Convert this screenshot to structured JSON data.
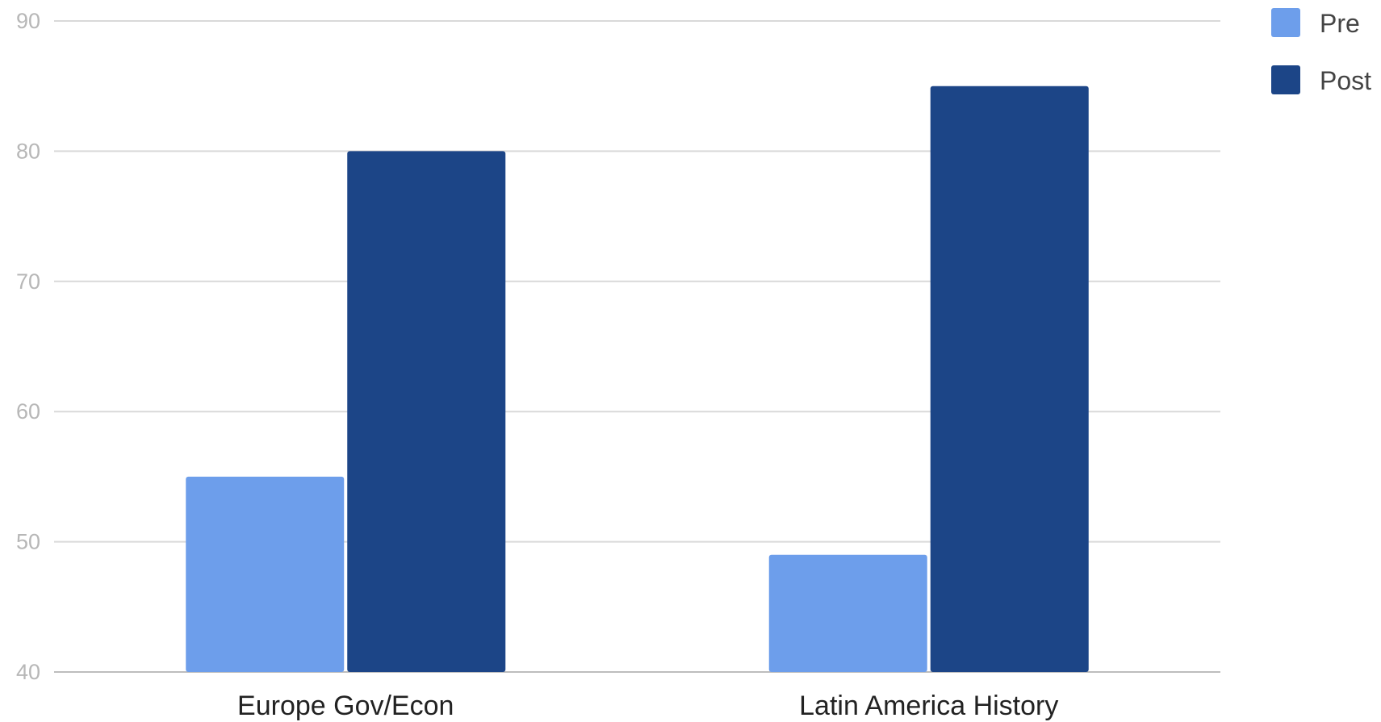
{
  "chart_data": {
    "type": "bar",
    "categories": [
      "Europe Gov/Econ",
      "Latin America History"
    ],
    "series": [
      {
        "name": "Pre",
        "values": [
          55,
          49
        ],
        "color": "#6d9eeb"
      },
      {
        "name": "Post",
        "values": [
          80,
          85
        ],
        "color": "#1c4587"
      }
    ],
    "ylim": [
      40,
      90
    ],
    "yticks": [
      40,
      50,
      60,
      70,
      80,
      90
    ],
    "grid": true,
    "legend_position": "top-right"
  }
}
